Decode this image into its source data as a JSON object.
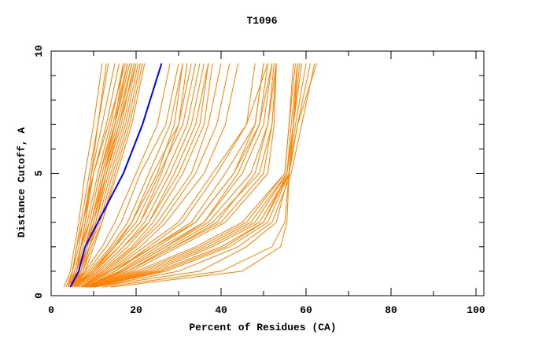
{
  "chart_data": {
    "type": "line",
    "title": "T1096",
    "xlabel": "Percent of Residues (CA)",
    "ylabel": "Distance Cutoff, A",
    "xlim": [
      0,
      102
    ],
    "ylim": [
      0,
      10
    ],
    "x_ticks": [
      0,
      20,
      40,
      60,
      80,
      100
    ],
    "y_ticks": [
      0,
      5,
      10
    ],
    "grid": false,
    "colors": {
      "models": "#ff8000",
      "highlight": "#0000ff",
      "axis": "#000000"
    },
    "y_levels": [
      0.35,
      1,
      2,
      3,
      5,
      7,
      9.5
    ],
    "highlight": [
      4.5,
      6.5,
      8,
      11,
      17,
      21.5,
      26
    ],
    "curves": [
      [
        3,
        4.5,
        5.5,
        6.5,
        8,
        10,
        12
      ],
      [
        3.5,
        5,
        6,
        7,
        9,
        11,
        13.5
      ],
      [
        4,
        5,
        6.5,
        7.5,
        9.5,
        12,
        15
      ],
      [
        4,
        5.5,
        7,
        8,
        10,
        13,
        16
      ],
      [
        4.5,
        6,
        7,
        8.5,
        11,
        14,
        17
      ],
      [
        4,
        6,
        7.5,
        9,
        11.5,
        14.5,
        18
      ],
      [
        5,
        6,
        8,
        9.5,
        12,
        15,
        18.5
      ],
      [
        4.5,
        6.5,
        8,
        10,
        12.5,
        16,
        19
      ],
      [
        5,
        7,
        8.5,
        10,
        13,
        16.5,
        19.5
      ],
      [
        5,
        6.5,
        8.5,
        10.5,
        13.5,
        17,
        20
      ],
      [
        5.5,
        7,
        9,
        11,
        14,
        17.5,
        20.5
      ],
      [
        5,
        7,
        9,
        11.5,
        14.5,
        18,
        21
      ],
      [
        5.5,
        7.5,
        9.5,
        12,
        15,
        18.5,
        21.5
      ],
      [
        6,
        8,
        10,
        12,
        15.5,
        19,
        22
      ],
      [
        5,
        6,
        7,
        8,
        9.5,
        11,
        13
      ],
      [
        4,
        5,
        6,
        7.5,
        10,
        13.5,
        17.5
      ],
      [
        6,
        7.5,
        9,
        10.5,
        13,
        16,
        20
      ],
      [
        5.5,
        6.5,
        8,
        9.5,
        12.5,
        15.5,
        19
      ],
      [
        4.5,
        5.5,
        7,
        9,
        11.5,
        15,
        18
      ],
      [
        6,
        7,
        8.5,
        10,
        12.5,
        15,
        17
      ],
      [
        5,
        8,
        12,
        15,
        20,
        25,
        28
      ],
      [
        5,
        8.5,
        13,
        16.5,
        21,
        27,
        30
      ],
      [
        5.5,
        9,
        14,
        18,
        23,
        28,
        31
      ],
      [
        6,
        9.5,
        14.5,
        19,
        24,
        30,
        33
      ],
      [
        6,
        10,
        15,
        20,
        25.5,
        31,
        34
      ],
      [
        6,
        10.5,
        16,
        21,
        27,
        32,
        35
      ],
      [
        6.5,
        11,
        17,
        22,
        28,
        33,
        36
      ],
      [
        6.5,
        11.5,
        18,
        23,
        29,
        34,
        37
      ],
      [
        7,
        12,
        19,
        24,
        31,
        36,
        38
      ],
      [
        7,
        12.5,
        19.5,
        25,
        33,
        37,
        40
      ],
      [
        7,
        13,
        20,
        26,
        34,
        39,
        42
      ],
      [
        7.5,
        13.5,
        21,
        27,
        36,
        41,
        44
      ],
      [
        6,
        10,
        16,
        21,
        26,
        30,
        32
      ],
      [
        6.5,
        11,
        17,
        23,
        30,
        35,
        37
      ],
      [
        5.5,
        9.5,
        15,
        19,
        25,
        29,
        31
      ],
      [
        7,
        14,
        22,
        30,
        38,
        46,
        48
      ],
      [
        7,
        15,
        24,
        33,
        41,
        48,
        50
      ],
      [
        7.5,
        16,
        25,
        34,
        43,
        49,
        51
      ],
      [
        7.5,
        16.5,
        26,
        36,
        45,
        50,
        52
      ],
      [
        8,
        17,
        27,
        37,
        47,
        51,
        53
      ],
      [
        8,
        18,
        28,
        38,
        49,
        52,
        53
      ],
      [
        8,
        18,
        29,
        40,
        50,
        52,
        53
      ],
      [
        8.5,
        19,
        30,
        41,
        51,
        52.5,
        53
      ],
      [
        7,
        15,
        23,
        31,
        39,
        46,
        51
      ],
      [
        7.5,
        17,
        27,
        36,
        44,
        49,
        52
      ],
      [
        8,
        18,
        29,
        39,
        48,
        51,
        52.5
      ],
      [
        7,
        14,
        24,
        34,
        43,
        48,
        50
      ],
      [
        8,
        20,
        34,
        45,
        55,
        56,
        57
      ],
      [
        8,
        21,
        35,
        46,
        55,
        56,
        57.5
      ],
      [
        8.5,
        22,
        36,
        47,
        55.5,
        56.5,
        58
      ],
      [
        8.5,
        23,
        37,
        48,
        55.5,
        57,
        58
      ],
      [
        9,
        24,
        38,
        49,
        56,
        57,
        59
      ],
      [
        9,
        25,
        40,
        50,
        56,
        57.5,
        60
      ],
      [
        9.5,
        27,
        42,
        51,
        56,
        58,
        61
      ],
      [
        10,
        30,
        44,
        52,
        56.5,
        59,
        62
      ],
      [
        9,
        26,
        41,
        50,
        55.5,
        57,
        58.5
      ],
      [
        10,
        35,
        46,
        53,
        56,
        57,
        58
      ],
      [
        12,
        40,
        52,
        55,
        56,
        58,
        62.5
      ],
      [
        14,
        45,
        54,
        55.5,
        56,
        57,
        58
      ]
    ]
  }
}
